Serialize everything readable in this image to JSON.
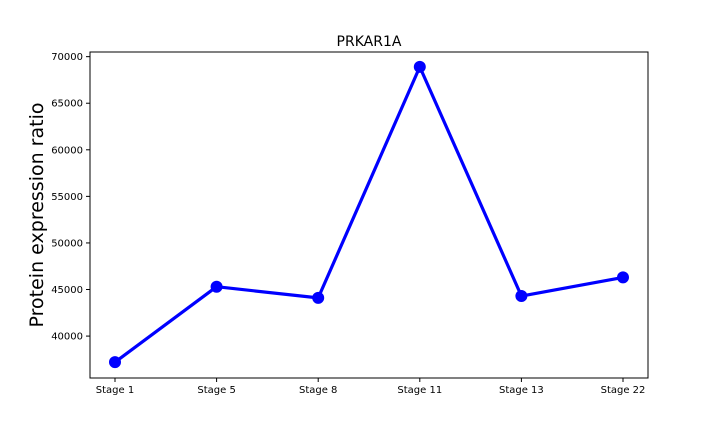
{
  "chart_data": {
    "type": "line",
    "title": "PRKAR1A",
    "xlabel": "",
    "ylabel": "Protein expression ratio",
    "categories": [
      "Stage 1",
      "Stage 5",
      "Stage 8",
      "Stage 11",
      "Stage 13",
      "Stage 22"
    ],
    "series": [
      {
        "values": [
          37200,
          45300,
          44100,
          68900,
          44300,
          46300
        ],
        "color": "#0000ff",
        "marker": "circle"
      }
    ],
    "ylim": [
      35500,
      70500
    ],
    "yticks": [
      40000,
      45000,
      50000,
      55000,
      60000,
      65000,
      70000
    ],
    "grid": false,
    "legend": "none"
  }
}
